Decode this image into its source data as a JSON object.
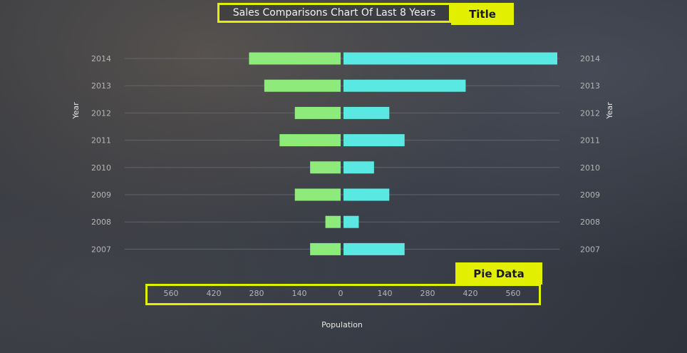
{
  "header": {
    "title": "Sales Comparisons Chart Of Last 8 Years",
    "title_tag": "Title"
  },
  "annotations": {
    "axis_tag": "Pie Data"
  },
  "colors": {
    "left_series": "#8eea7a",
    "right_series": "#5ae8e2",
    "highlight": "#e2f000",
    "gridline": "#6a6d72"
  },
  "chart_data": {
    "type": "bar",
    "orientation": "horizontal-butterfly",
    "categories": [
      "2014",
      "2013",
      "2012",
      "2011",
      "2010",
      "2009",
      "2008",
      "2007"
    ],
    "series": [
      {
        "values": [
          -300,
          -250,
          -150,
          -200,
          -100,
          -150,
          -50,
          -100
        ]
      },
      {
        "values": [
          700,
          400,
          150,
          200,
          100,
          150,
          50,
          200
        ]
      }
    ],
    "x_ticks": [
      560,
      420,
      280,
      140,
      0,
      140,
      280,
      420,
      560
    ],
    "xlabel": "Population",
    "ylabel_left": "Year",
    "ylabel_right": "Year",
    "grid": true
  }
}
